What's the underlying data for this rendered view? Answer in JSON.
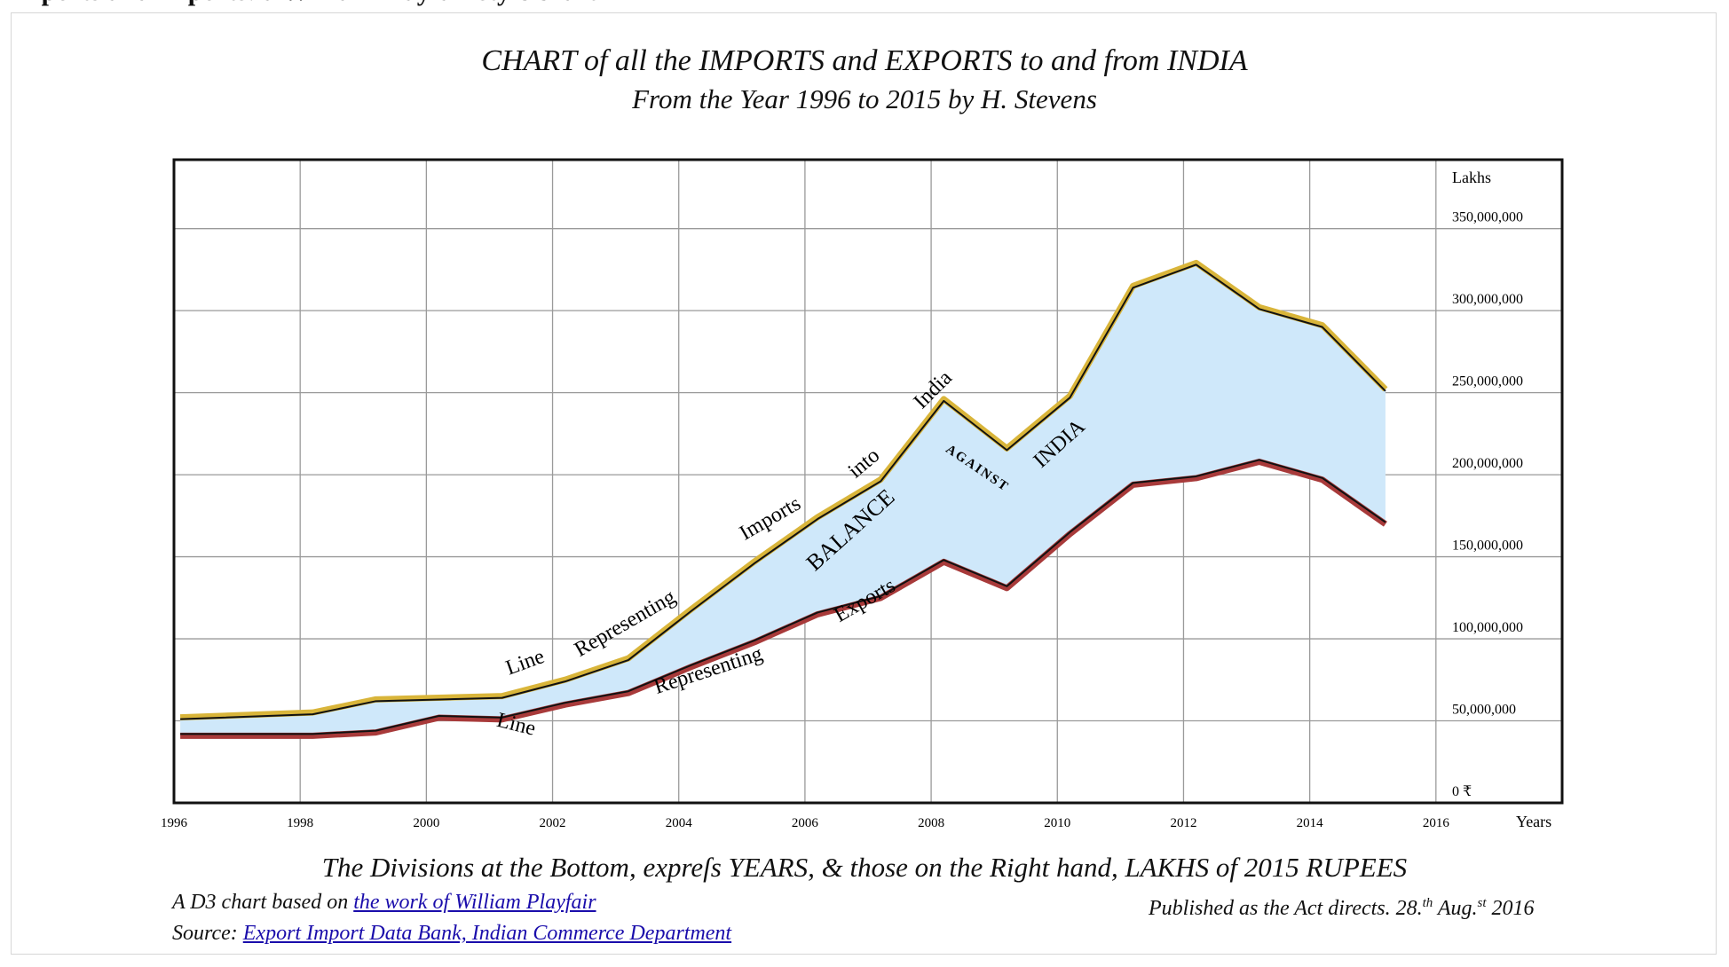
{
  "header_fragment": "Imports and Exports: a William Playfair style chart",
  "titles": {
    "line1": "CHART of all the IMPORTS and EXPORTS to and from INDIA",
    "line2": "From the Year 1996 to 2015 by H. Stevens"
  },
  "caption": "The Divisions at the Bottom, expreſs YEARS, & those on the Right hand, LAKHS of 2015 RUPEES",
  "credit": {
    "prefix": "A D3 chart based on ",
    "link": "the work of William Playfair"
  },
  "source": {
    "prefix": "Source: ",
    "link": "Export Import Data Bank, Indian Commerce Department"
  },
  "published": {
    "text": "Published as the Act directs. 28.",
    "th": "th",
    "aug": " Aug.",
    "st": "st",
    "year": " 2016"
  },
  "colors": {
    "imports": "#d9b53a",
    "exports": "#a83a3a",
    "balance": "#cfe8fa",
    "grid": "#9a9a9a",
    "frame": "#111111"
  },
  "chart_data": {
    "type": "area",
    "x_ticks": [
      "1996",
      "1998",
      "2000",
      "2002",
      "2004",
      "2006",
      "2008",
      "2010",
      "2012",
      "2014",
      "2016"
    ],
    "x_axis_unit": "Years",
    "y_ticks": [
      "0 ₹",
      "50,000,000",
      "100,000,000",
      "150,000,000",
      "200,000,000",
      "250,000,000",
      "300,000,000",
      "350,000,000"
    ],
    "y_axis_unit": "Lakhs",
    "xlim": [
      1996,
      2018
    ],
    "ylim": [
      0,
      392000000
    ],
    "grid": true,
    "x": [
      1996.1,
      1998.2,
      1999.2,
      2000.2,
      2001.2,
      2002.2,
      2003.2,
      2004.2,
      2005.2,
      2006.2,
      2007.2,
      2008.2,
      2009.2,
      2010.2,
      2011.2,
      2012.2,
      2013.2,
      2014.2,
      2015.2
    ],
    "series": [
      {
        "key": "imports",
        "values": [
          51000000,
          54000000,
          62000000,
          63000000,
          64000000,
          74000000,
          87000000,
          117000000,
          146000000,
          173000000,
          196000000,
          245000000,
          215000000,
          247000000,
          314000000,
          328000000,
          301000000,
          290000000,
          251000000
        ]
      },
      {
        "key": "exports",
        "values": [
          42000000,
          42000000,
          44000000,
          53000000,
          52000000,
          61000000,
          68000000,
          84000000,
          99000000,
          116000000,
          126000000,
          148000000,
          132000000,
          165000000,
          195000000,
          199000000,
          209000000,
          198000000,
          171000000
        ]
      }
    ],
    "annotations": {
      "imports_line": [
        "Line",
        "Representing",
        "Imports",
        "into",
        "India"
      ],
      "exports_line": [
        "Line",
        "Representing",
        "Exports"
      ],
      "balance": [
        "BALANCE",
        "AGAINST",
        "INDIA"
      ]
    }
  }
}
